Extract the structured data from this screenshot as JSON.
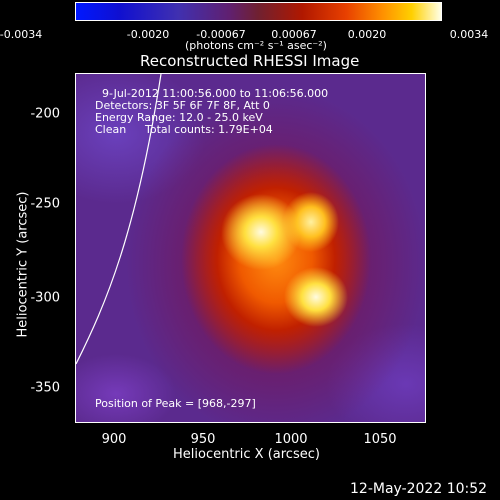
{
  "colorbar": {
    "ticks": [
      "-0.0034",
      "-0.0020",
      "-0.00067",
      "0.00067",
      "0.0020",
      "0.0034"
    ],
    "units": "(photons cm⁻² s⁻¹ asec⁻²)"
  },
  "plot": {
    "title": "Reconstructed RHESSI Image",
    "xlabel": "Heliocentric X (arcsec)",
    "ylabel": "Heliocentric Y (arcsec)",
    "xticks": [
      "900",
      "950",
      "1000",
      "1050"
    ],
    "yticks": [
      "-200",
      "-250",
      "-300",
      "-350"
    ]
  },
  "annotations": {
    "time_range": "9-Jul-2012 11:00:56.000 to 11:06:56.000",
    "detectors": "Detectors: 3F 5F 6F 7F 8F, Att 0",
    "energy": "Energy Range: 12.0 - 25.0 keV",
    "clean_label": "Clean",
    "total_counts": "Total counts: 1.79E+04",
    "peak": "Position of Peak = [968,-297]"
  },
  "timestamp": "12-May-2022 10:52"
}
